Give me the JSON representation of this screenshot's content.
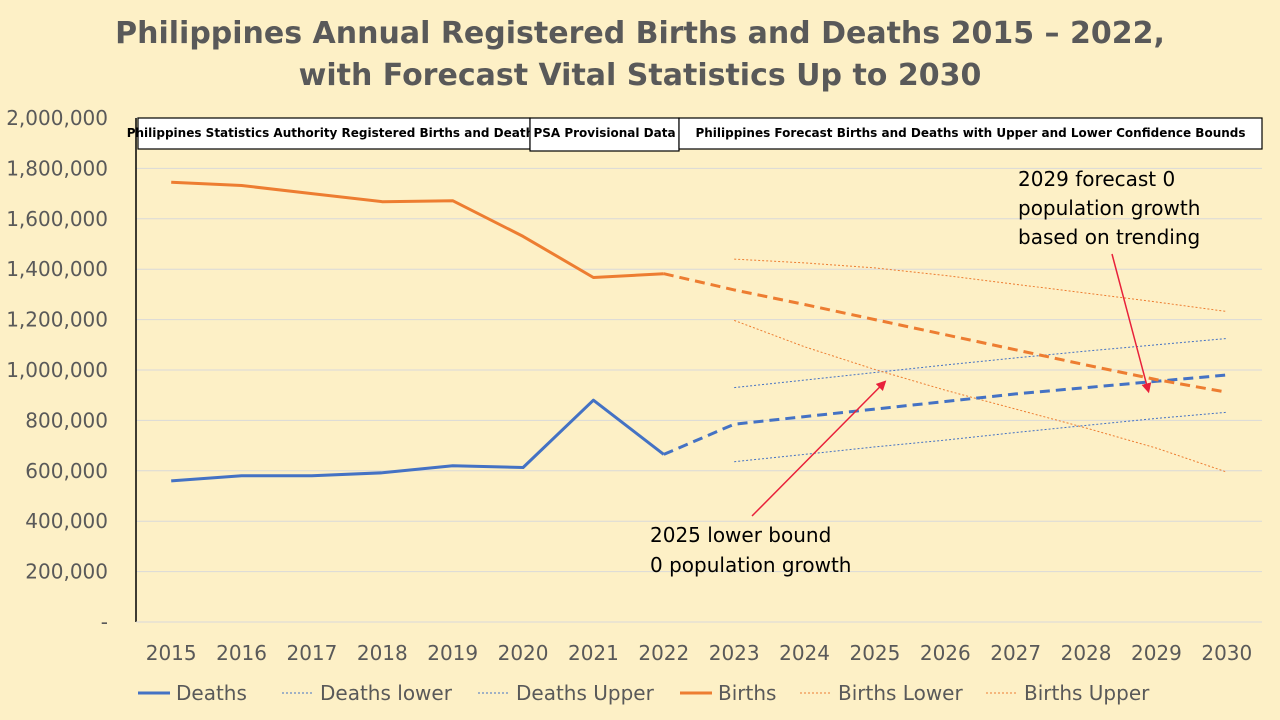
{
  "chart_data": {
    "type": "line",
    "title": "Philippines Annual Registered Births and Deaths 2015 – 2022,",
    "subtitle": "with Forecast Vital Statistics Up to 2030",
    "x": [
      "2015",
      "2016",
      "2017",
      "2018",
      "2019",
      "2020",
      "2021",
      "2022",
      "2023",
      "2024",
      "2025",
      "2026",
      "2027",
      "2028",
      "2029",
      "2030"
    ],
    "ylim": [
      0,
      2000000
    ],
    "y_ticks": [
      "-",
      "200,000",
      "400,000",
      "600,000",
      "800,000",
      "1,000,000",
      "1,200,000",
      "1,400,000",
      "1,600,000",
      "1,800,000",
      "2,000,000"
    ],
    "grid": true,
    "legend_position": "bottom",
    "series": [
      {
        "name": "Deaths",
        "color": "#4472c4",
        "style": "solid",
        "values": [
          560000,
          580000,
          580000,
          592000,
          620000,
          613000,
          880000,
          665000,
          null,
          null,
          null,
          null,
          null,
          null,
          null,
          null
        ]
      },
      {
        "name": "Deaths lower",
        "color": "#4472c4",
        "style": "dotted",
        "values": [
          null,
          null,
          null,
          null,
          null,
          null,
          null,
          null,
          636000,
          665000,
          695000,
          722000,
          752000,
          780000,
          808000,
          832000
        ]
      },
      {
        "name": "Deaths Upper",
        "color": "#4472c4",
        "style": "dotted",
        "values": [
          null,
          null,
          null,
          null,
          null,
          null,
          null,
          null,
          930000,
          960000,
          990000,
          1020000,
          1048000,
          1075000,
          1100000,
          1125000
        ]
      },
      {
        "name": "Births",
        "color": "#ed7d31",
        "style": "solid",
        "values": [
          1745000,
          1732000,
          1700000,
          1668000,
          1672000,
          1530000,
          1367000,
          1382000,
          null,
          null,
          null,
          null,
          null,
          null,
          null,
          null
        ]
      },
      {
        "name": "Births Lower",
        "color": "#ed7d31",
        "style": "dotted",
        "values": [
          null,
          null,
          null,
          null,
          null,
          null,
          null,
          null,
          1197000,
          1092000,
          1002000,
          920000,
          845000,
          770000,
          690000,
          595000
        ]
      },
      {
        "name": "Births Upper",
        "color": "#ed7d31",
        "style": "dotted",
        "values": [
          null,
          null,
          null,
          null,
          null,
          null,
          null,
          null,
          1440000,
          1425000,
          1405000,
          1375000,
          1340000,
          1305000,
          1270000,
          1232000
        ]
      }
    ],
    "forecast": {
      "deaths_color": "#4472c4",
      "births_color": "#ed7d31",
      "deaths_values": [
        665000,
        785000,
        815000,
        845000,
        875000,
        905000,
        930000,
        955000,
        980000
      ],
      "births_values": [
        1382000,
        1318000,
        1260000,
        1200000,
        1140000,
        1080000,
        1020000,
        962000,
        912000
      ],
      "start_year": "2022"
    },
    "periods": [
      {
        "label": "Philippines Statistics Authority Registered Births and Deaths"
      },
      {
        "label": "PSA Provisional Data"
      },
      {
        "label": "Philippines Forecast Births and Deaths with Upper and Lower Confidence Bounds"
      }
    ],
    "annotations": [
      {
        "lines": [
          "2029 forecast 0",
          "population growth",
          "based on trending"
        ],
        "year": "2029",
        "value": 955000
      },
      {
        "lines": [
          "2025 lower bound",
          "0 population growth"
        ],
        "year": "2025",
        "value": 985000
      }
    ],
    "annotation_arrow_color": "#e8203a"
  }
}
